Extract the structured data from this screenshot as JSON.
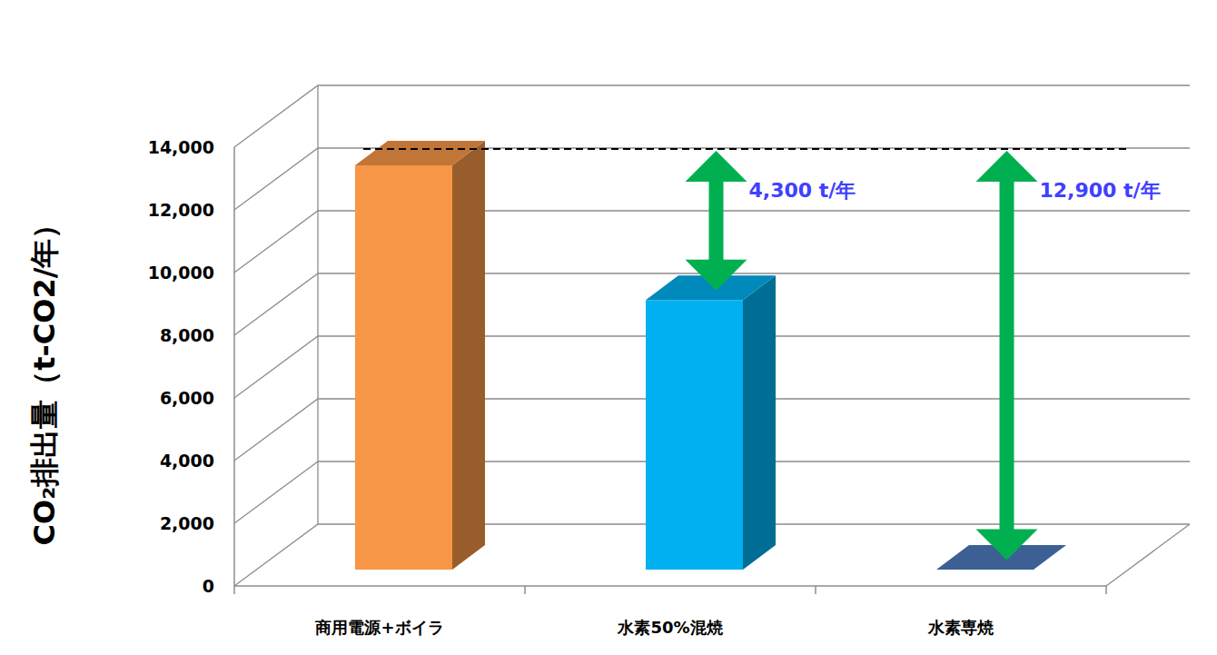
{
  "chart_data": {
    "type": "bar",
    "y_label": "CO₂排出量（t-CO2/年）",
    "categories": [
      "商用電源+ボイラ",
      "水素50%混焼",
      "水素専焼"
    ],
    "values": [
      12900,
      8600,
      0
    ],
    "colors": [
      "#f79646",
      "#00b0f0",
      "#3c6094"
    ],
    "ylim": [
      0,
      14000
    ],
    "yticks": [
      0,
      {
        "value": 2000,
        "label": "2,000"
      },
      {
        "value": 4000,
        "label": "4,000"
      },
      {
        "value": 6000,
        "label": "6,000"
      },
      {
        "value": 8000,
        "label": "8,000"
      },
      {
        "value": 10000,
        "label": "10,000"
      },
      {
        "value": 12000,
        "label": "12,000"
      },
      {
        "value": 14000,
        "label": "14,000"
      }
    ],
    "grid": true,
    "annotations": [
      "4,300 t/年",
      "12,900 t/年"
    ]
  }
}
